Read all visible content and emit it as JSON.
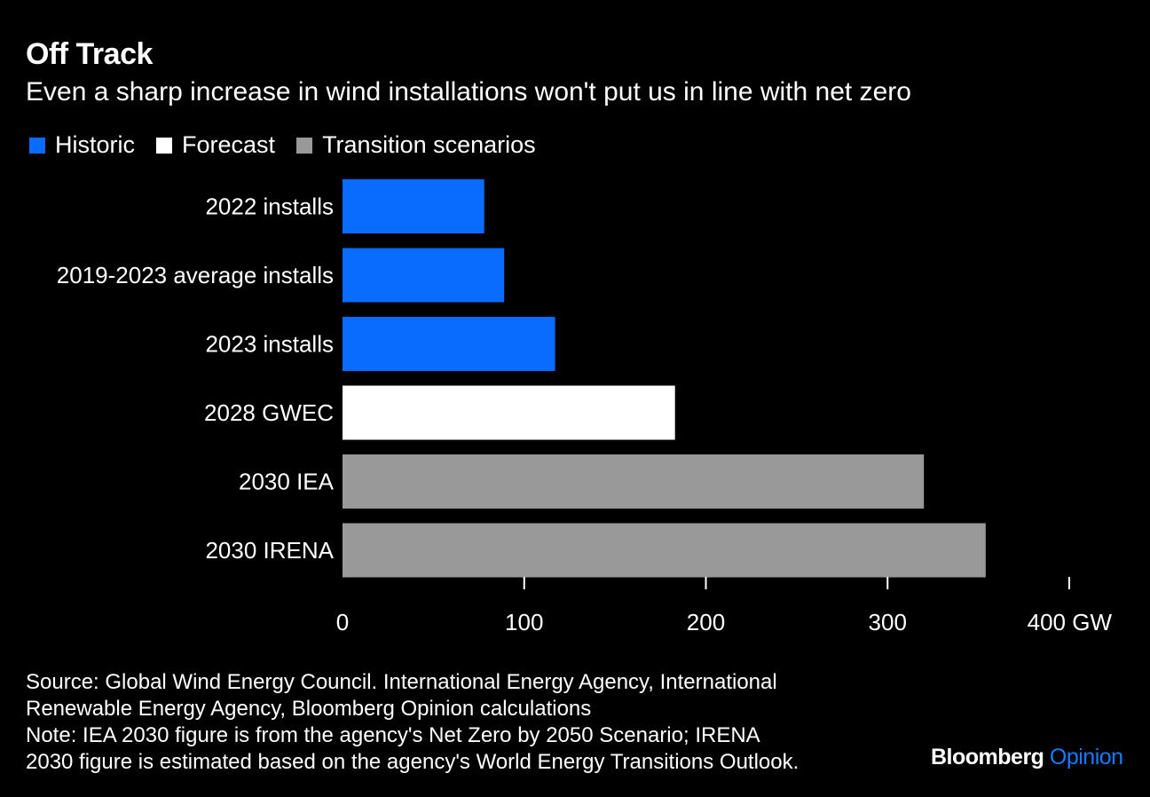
{
  "header": {
    "title": "Off Track",
    "subtitle": "Even a sharp increase in wind installations won't put us in line with net zero"
  },
  "legend": [
    {
      "label": "Historic",
      "color": "#0a6cff"
    },
    {
      "label": "Forecast",
      "color": "#ffffff"
    },
    {
      "label": "Transition scenarios",
      "color": "#999999"
    }
  ],
  "chart_data": {
    "type": "bar",
    "orientation": "horizontal",
    "categories": [
      "2022 installs",
      "2019-2023 average installs",
      "2023 installs",
      "2028 GWEC",
      "2030 IEA",
      "2030 IRENA"
    ],
    "values": [
      78,
      89,
      117,
      183,
      320,
      354
    ],
    "groups": [
      "Historic",
      "Historic",
      "Historic",
      "Forecast",
      "Transition scenarios",
      "Transition scenarios"
    ],
    "colors": [
      "#0a6cff",
      "#0a6cff",
      "#0a6cff",
      "#ffffff",
      "#999999",
      "#999999"
    ],
    "xlim": [
      0,
      400
    ],
    "xticks": [
      0,
      100,
      200,
      300,
      400
    ],
    "xtick_labels": [
      "0",
      "100",
      "200",
      "300",
      "400 GW"
    ],
    "xlabel": "",
    "ylabel": "",
    "unit": "GW"
  },
  "footer": {
    "source_line1": "Source: Global Wind Energy Council. International Energy Agency, International",
    "source_line2": "Renewable Energy Agency, Bloomberg Opinion calculations",
    "note_line1": "Note: IEA 2030 figure is from the agency's Net Zero by 2050 Scenario; IRENA",
    "note_line2": "2030 figure is estimated based on the agency's World Energy Transitions Outlook."
  },
  "brand": {
    "name": "Bloomberg",
    "section": "Opinion"
  }
}
